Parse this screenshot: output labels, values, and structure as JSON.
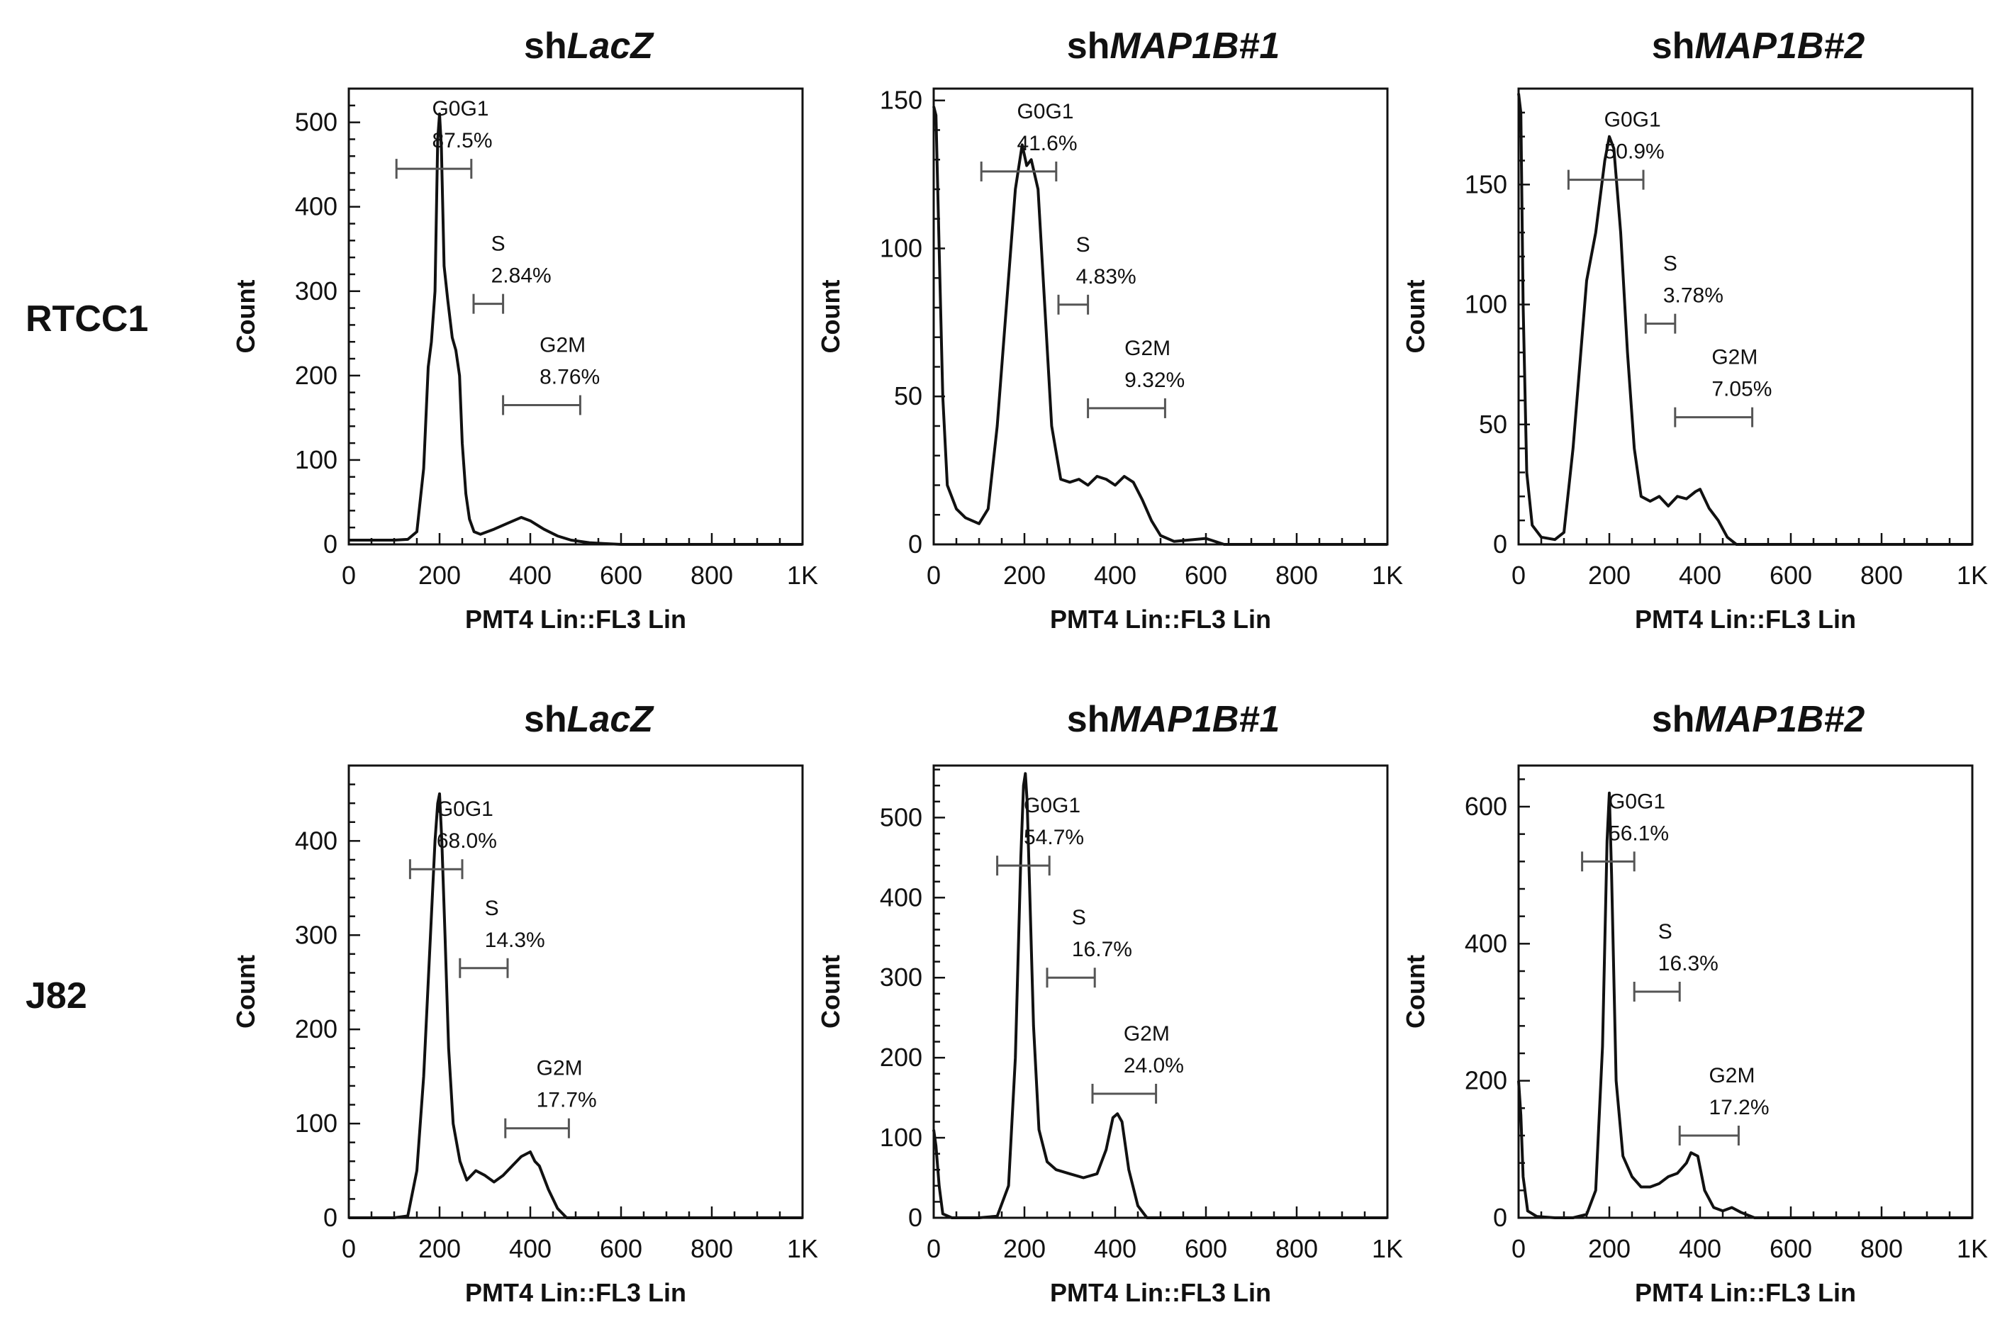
{
  "figure": {
    "row_labels": [
      "RTCC1",
      "J82"
    ],
    "ylabel": "Count",
    "xlabel": "PMT4 Lin::FL3 Lin",
    "x_tick_labels": [
      "0",
      "200",
      "400",
      "600",
      "800",
      "1K"
    ],
    "line_color": "#111111",
    "gate_color": "#555555"
  },
  "chart_data": [
    {
      "type": "line",
      "row": "RTCC1",
      "title_prefix": "sh",
      "title_italic": "LacZ",
      "xlabel": "PMT4 Lin::FL3 Lin",
      "ylabel": "Count",
      "xlim": [
        0,
        1000
      ],
      "ylim": [
        0,
        540
      ],
      "yticks": [
        0,
        100,
        200,
        300,
        400,
        500
      ],
      "x": [
        0,
        100,
        130,
        150,
        165,
        175,
        182,
        190,
        196,
        200,
        204,
        210,
        218,
        228,
        236,
        244,
        250,
        258,
        266,
        276,
        290,
        320,
        350,
        380,
        400,
        430,
        460,
        490,
        530,
        560,
        600,
        1000
      ],
      "y": [
        5,
        5,
        6,
        15,
        90,
        210,
        240,
        300,
        480,
        510,
        470,
        330,
        290,
        245,
        230,
        200,
        120,
        60,
        30,
        15,
        12,
        18,
        25,
        32,
        28,
        18,
        10,
        5,
        2,
        1,
        0,
        0
      ],
      "gates": [
        {
          "name": "G0G1",
          "pct": "87.5%",
          "x1": 105,
          "x2": 270,
          "y": 445
        },
        {
          "name": "S",
          "pct": "2.84%",
          "x1": 275,
          "x2": 340,
          "y": 285
        },
        {
          "name": "G2M",
          "pct": "8.76%",
          "x1": 340,
          "x2": 510,
          "y": 165
        }
      ]
    },
    {
      "type": "line",
      "row": "RTCC1",
      "title_prefix": "sh",
      "title_italic": "MAP1B#1",
      "xlabel": "PMT4 Lin::FL3 Lin",
      "ylabel": "Count",
      "xlim": [
        0,
        1000
      ],
      "ylim": [
        0,
        154
      ],
      "yticks": [
        0,
        50,
        100,
        150
      ],
      "x": [
        0,
        5,
        12,
        20,
        30,
        50,
        70,
        100,
        120,
        140,
        160,
        180,
        195,
        205,
        215,
        230,
        245,
        260,
        280,
        300,
        320,
        340,
        360,
        380,
        400,
        420,
        440,
        460,
        480,
        500,
        530,
        600,
        640,
        1000
      ],
      "y": [
        148,
        145,
        100,
        50,
        20,
        12,
        9,
        7,
        12,
        40,
        80,
        120,
        135,
        128,
        130,
        120,
        80,
        40,
        22,
        21,
        22,
        20,
        23,
        22,
        20,
        23,
        21,
        15,
        8,
        3,
        1,
        2,
        0,
        0
      ],
      "gates": [
        {
          "name": "G0G1",
          "pct": "41.6%",
          "x1": 105,
          "x2": 270,
          "y": 126
        },
        {
          "name": "S",
          "pct": "4.83%",
          "x1": 275,
          "x2": 340,
          "y": 81
        },
        {
          "name": "G2M",
          "pct": "9.32%",
          "x1": 340,
          "x2": 510,
          "y": 46
        }
      ]
    },
    {
      "type": "line",
      "row": "RTCC1",
      "title_prefix": "sh",
      "title_italic": "MAP1B#2",
      "xlabel": "PMT4 Lin::FL3 Lin",
      "ylabel": "Count",
      "xlim": [
        0,
        1000
      ],
      "ylim": [
        0,
        190
      ],
      "yticks": [
        0,
        50,
        100,
        150
      ],
      "x": [
        0,
        5,
        10,
        18,
        30,
        50,
        80,
        100,
        120,
        150,
        170,
        190,
        200,
        210,
        225,
        240,
        255,
        270,
        290,
        310,
        330,
        350,
        370,
        390,
        400,
        420,
        440,
        460,
        480,
        1000
      ],
      "y": [
        188,
        180,
        100,
        30,
        8,
        3,
        2,
        5,
        40,
        110,
        130,
        160,
        170,
        165,
        130,
        80,
        40,
        20,
        18,
        20,
        16,
        20,
        19,
        22,
        23,
        15,
        10,
        3,
        0,
        0
      ],
      "gates": [
        {
          "name": "G0G1",
          "pct": "50.9%",
          "x1": 110,
          "x2": 275,
          "y": 152
        },
        {
          "name": "S",
          "pct": "3.78%",
          "x1": 280,
          "x2": 345,
          "y": 92
        },
        {
          "name": "G2M",
          "pct": "7.05%",
          "x1": 345,
          "x2": 515,
          "y": 53
        }
      ]
    },
    {
      "type": "line",
      "row": "J82",
      "title_prefix": "sh",
      "title_italic": "LacZ",
      "xlabel": "PMT4 Lin::FL3 Lin",
      "ylabel": "Count",
      "xlim": [
        0,
        1000
      ],
      "ylim": [
        0,
        480
      ],
      "yticks": [
        0,
        100,
        200,
        300,
        400
      ],
      "x": [
        0,
        100,
        130,
        150,
        165,
        180,
        190,
        196,
        200,
        205,
        212,
        220,
        230,
        245,
        260,
        280,
        300,
        320,
        340,
        360,
        380,
        400,
        410,
        420,
        440,
        460,
        480,
        1000
      ],
      "y": [
        0,
        0,
        2,
        50,
        150,
        300,
        400,
        440,
        450,
        400,
        300,
        180,
        100,
        60,
        40,
        50,
        45,
        38,
        45,
        55,
        65,
        70,
        60,
        55,
        30,
        10,
        0,
        0
      ],
      "gates": [
        {
          "name": "G0G1",
          "pct": "68.0%",
          "x1": 135,
          "x2": 250,
          "y": 370
        },
        {
          "name": "S",
          "pct": "14.3%",
          "x1": 245,
          "x2": 350,
          "y": 265
        },
        {
          "name": "G2M",
          "pct": "17.7%",
          "x1": 345,
          "x2": 485,
          "y": 95
        }
      ]
    },
    {
      "type": "line",
      "row": "J82",
      "title_prefix": "sh",
      "title_italic": "MAP1B#1",
      "xlabel": "PMT4 Lin::FL3 Lin",
      "ylabel": "Count",
      "xlim": [
        0,
        1000
      ],
      "ylim": [
        0,
        565
      ],
      "yticks": [
        0,
        100,
        200,
        300,
        400,
        500
      ],
      "x": [
        0,
        5,
        12,
        20,
        40,
        100,
        140,
        165,
        180,
        192,
        198,
        202,
        206,
        212,
        220,
        232,
        250,
        270,
        300,
        330,
        360,
        380,
        395,
        405,
        415,
        430,
        450,
        470,
        1000
      ],
      "y": [
        110,
        90,
        40,
        5,
        0,
        0,
        2,
        40,
        200,
        450,
        540,
        555,
        520,
        400,
        240,
        110,
        70,
        60,
        55,
        50,
        55,
        85,
        125,
        130,
        120,
        60,
        15,
        0,
        0
      ],
      "gates": [
        {
          "name": "G0G1",
          "pct": "54.7%",
          "x1": 140,
          "x2": 255,
          "y": 440
        },
        {
          "name": "S",
          "pct": "16.7%",
          "x1": 250,
          "x2": 355,
          "y": 300
        },
        {
          "name": "G2M",
          "pct": "24.0%",
          "x1": 350,
          "x2": 490,
          "y": 155
        }
      ]
    },
    {
      "type": "line",
      "row": "J82",
      "title_prefix": "sh",
      "title_italic": "MAP1B#2",
      "xlabel": "PMT4 Lin::FL3 Lin",
      "ylabel": "Count",
      "xlim": [
        0,
        1000
      ],
      "ylim": [
        0,
        660
      ],
      "yticks": [
        0,
        200,
        400,
        600
      ],
      "x": [
        0,
        5,
        10,
        20,
        40,
        80,
        120,
        150,
        170,
        185,
        195,
        200,
        205,
        215,
        230,
        250,
        270,
        290,
        310,
        330,
        350,
        370,
        380,
        395,
        410,
        430,
        450,
        470,
        490,
        520,
        1000
      ],
      "y": [
        200,
        150,
        60,
        10,
        2,
        0,
        0,
        5,
        40,
        250,
        550,
        620,
        500,
        200,
        90,
        60,
        45,
        45,
        50,
        60,
        65,
        80,
        95,
        90,
        40,
        15,
        10,
        15,
        8,
        0,
        0
      ],
      "gates": [
        {
          "name": "G0G1",
          "pct": "56.1%",
          "x1": 140,
          "x2": 255,
          "y": 520
        },
        {
          "name": "S",
          "pct": "16.3%",
          "x1": 255,
          "x2": 355,
          "y": 330
        },
        {
          "name": "G2M",
          "pct": "17.2%",
          "x1": 355,
          "x2": 485,
          "y": 120
        }
      ]
    }
  ]
}
